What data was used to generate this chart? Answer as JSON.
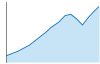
{
  "years": [
    1861,
    1871,
    1881,
    1891,
    1901,
    1911,
    1921,
    1931,
    1936,
    1951,
    1961,
    1971,
    1981,
    1991,
    2001,
    2011,
    2019
  ],
  "population": [
    1200,
    1350,
    1500,
    1700,
    1900,
    2200,
    2500,
    2800,
    3000,
    3400,
    3800,
    3900,
    3600,
    3200,
    3700,
    4100,
    4400
  ],
  "line_color": "#1a7abf",
  "fill_color": "#c6e4f5",
  "background_color": "#ffffff",
  "ylim_min": 800,
  "ylim_max": 4700,
  "xlim_min": 1861,
  "xlim_max": 2019
}
